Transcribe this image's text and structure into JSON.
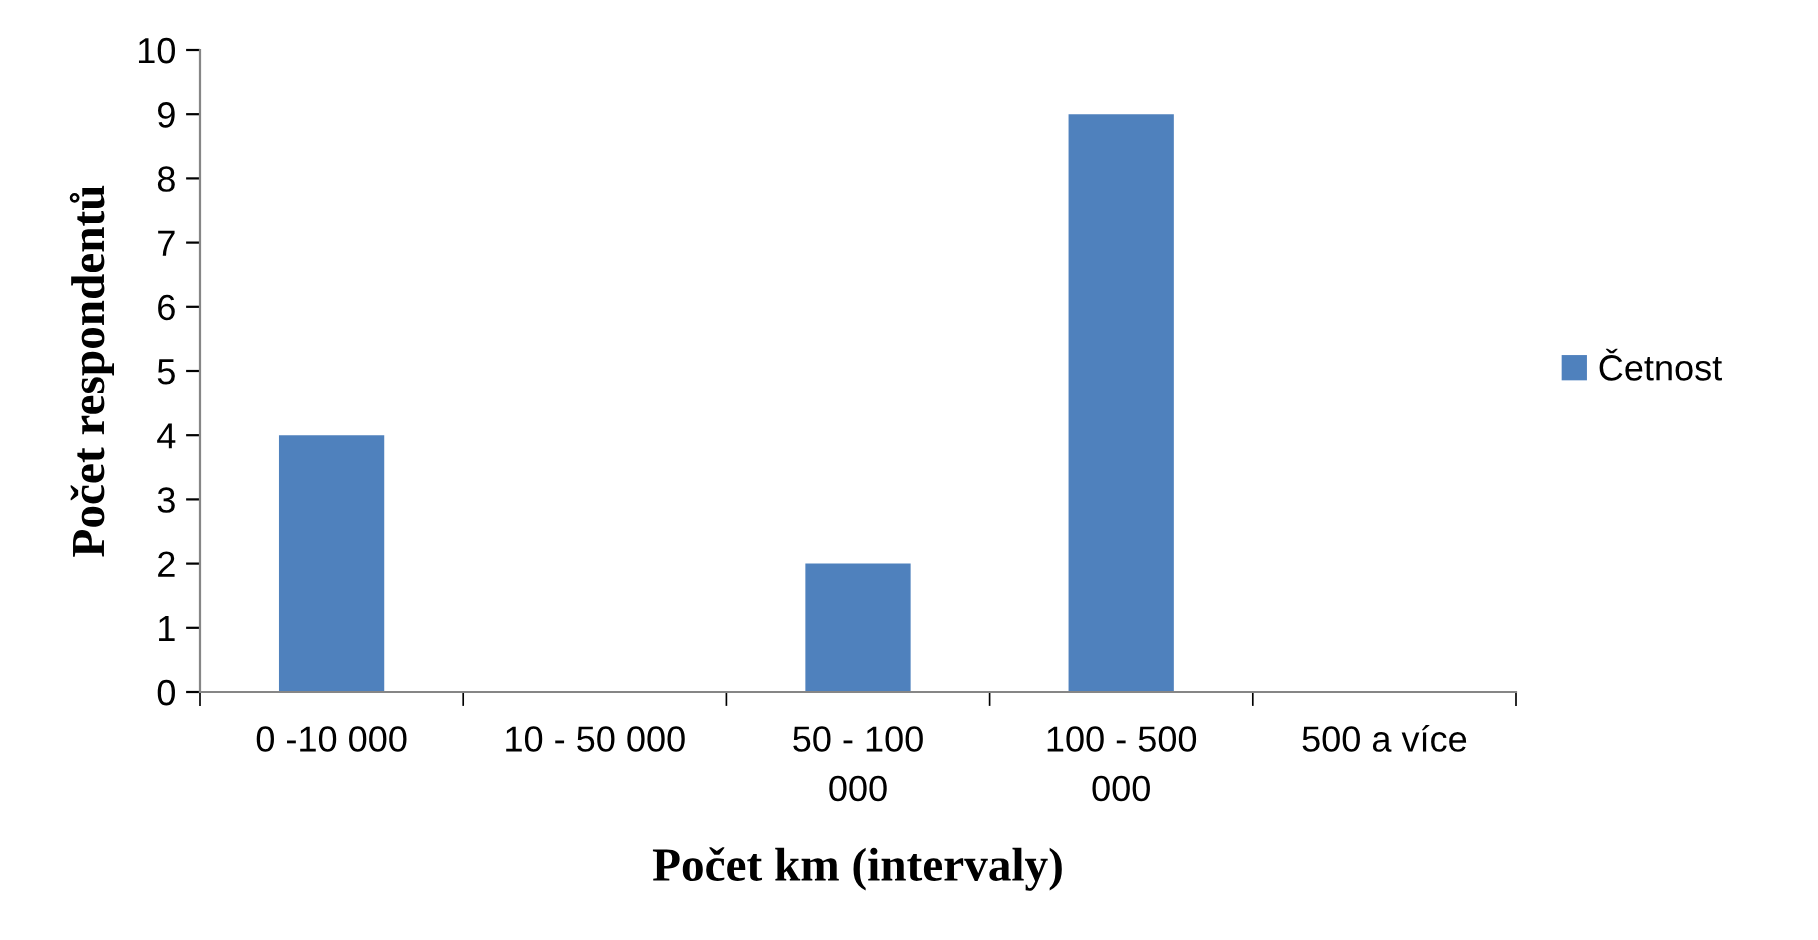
{
  "chart_data": {
    "type": "bar",
    "xlabel": "Počet km (intervaly)",
    "ylabel": "Počet respondentů",
    "categories": [
      "0 -10 000",
      "10 - 50 000",
      "50 - 100 000",
      "100 - 500 000",
      "500 a více"
    ],
    "series": [
      {
        "name": "Četnost",
        "color": "#4f81bd",
        "values": [
          4,
          0,
          2,
          9,
          0
        ]
      }
    ],
    "ylim": [
      0,
      10
    ],
    "yticks": [
      0,
      1,
      2,
      3,
      4,
      5,
      6,
      7,
      8,
      9,
      10
    ],
    "grid": false,
    "legend": "right"
  }
}
